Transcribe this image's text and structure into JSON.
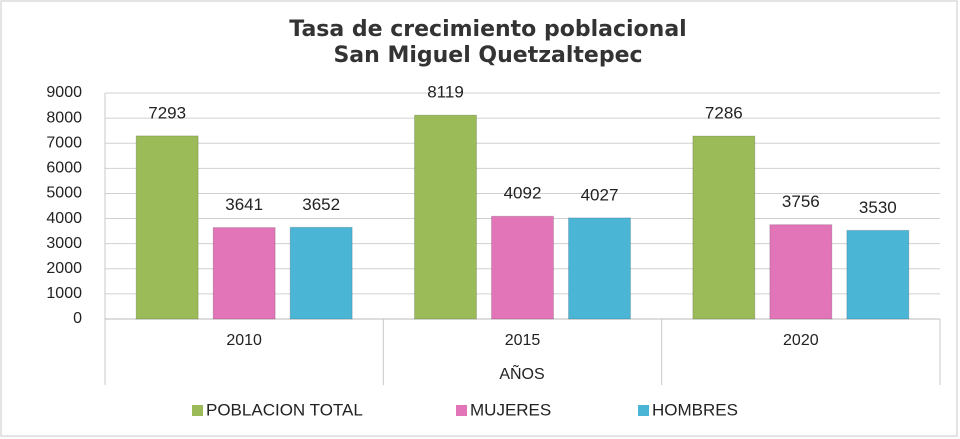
{
  "chart_data": {
    "type": "bar",
    "title": [
      "Tasa de crecimiento poblacional",
      "San Miguel Quetzaltepec"
    ],
    "categories": [
      "2010",
      "2015",
      "2020"
    ],
    "series": [
      {
        "name": "POBLACION TOTAL",
        "color": "#9bbb59",
        "values": [
          7293,
          8119,
          7286
        ]
      },
      {
        "name": "MUJERES",
        "color": "#e274b8",
        "values": [
          3641,
          4092,
          3756
        ]
      },
      {
        "name": "HOMBRES",
        "color": "#4bb5d6",
        "values": [
          3652,
          4027,
          3530
        ]
      }
    ],
    "x_label": "AÑOS",
    "ylim": [
      0,
      9000
    ],
    "yticks": [
      0,
      1000,
      2000,
      3000,
      4000,
      5000,
      6000,
      7000,
      8000,
      9000
    ],
    "grid": true,
    "legend": "bottom"
  }
}
